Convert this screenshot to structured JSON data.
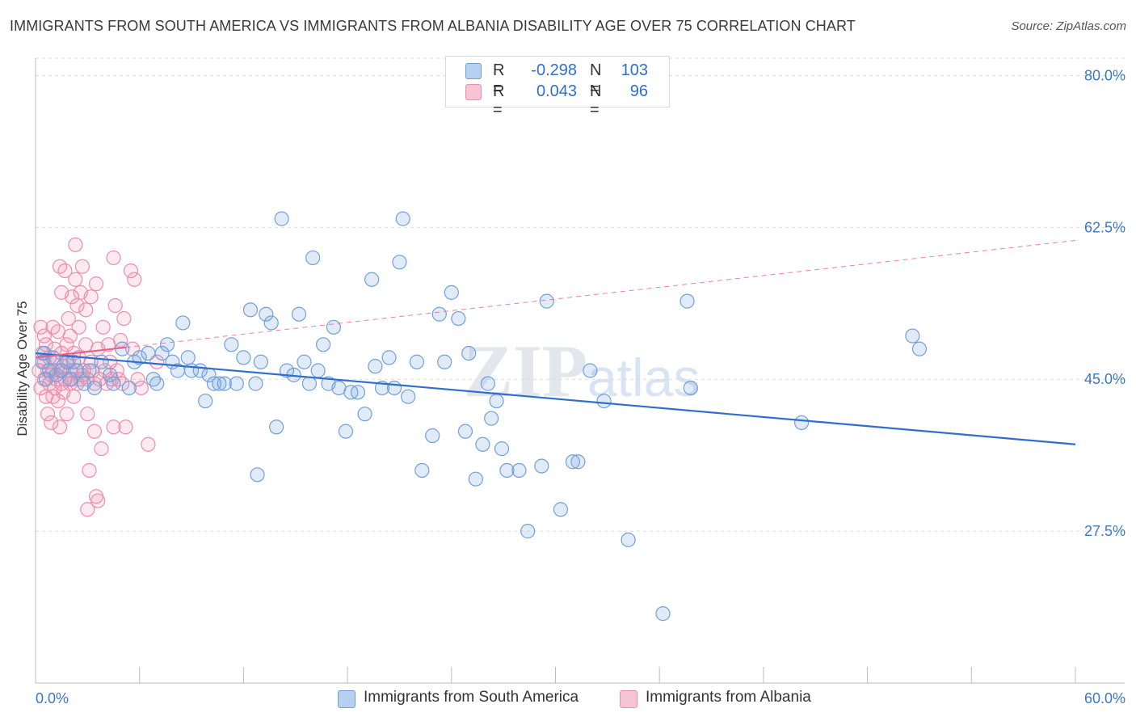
{
  "chart_data": {
    "type": "scatter",
    "title": "IMMIGRANTS FROM SOUTH AMERICA VS IMMIGRANTS FROM ALBANIA DISABILITY AGE OVER 75 CORRELATION CHART",
    "source": "Source: ZipAtlas.com",
    "watermark": "ZIPatlas",
    "xlabel": "",
    "ylabel": "Disability Age Over 75",
    "xlim": [
      0,
      60
    ],
    "ylim": [
      10,
      82
    ],
    "x_tick_labels": [
      "0.0%",
      "60.0%"
    ],
    "y_ticks": [
      27.5,
      45.0,
      62.5,
      80.0
    ],
    "y_tick_labels": [
      "27.5%",
      "45.0%",
      "62.5%",
      "80.0%"
    ],
    "grid": true,
    "legend": {
      "position": "top-center",
      "rows": [
        {
          "r_label": "R =",
          "r_value": "-0.298",
          "n_label": "N =",
          "n_value": "103"
        },
        {
          "r_label": "R =",
          "r_value": "0.043",
          "n_label": "N =",
          "n_value": "96"
        }
      ]
    },
    "series": [
      {
        "name": "Immigrants from South America",
        "color": "#6fa0dc",
        "line_color": "#2f6fcc",
        "trend": {
          "x": [
            0,
            60
          ],
          "y": [
            48.0,
            37.5
          ],
          "style": "solid"
        },
        "points": [
          [
            0.4,
            47
          ],
          [
            0.5,
            48
          ],
          [
            0.6,
            45
          ],
          [
            0.8,
            46
          ],
          [
            1,
            47.5
          ],
          [
            1.2,
            45.5
          ],
          [
            1.5,
            46
          ],
          [
            1.8,
            47
          ],
          [
            2,
            45
          ],
          [
            2.2,
            47
          ],
          [
            2.4,
            46
          ],
          [
            2.8,
            44.5
          ],
          [
            3.1,
            46
          ],
          [
            3.4,
            44
          ],
          [
            3.8,
            47
          ],
          [
            4.3,
            45.5
          ],
          [
            4.5,
            44.5
          ],
          [
            5,
            48.5
          ],
          [
            5.4,
            44
          ],
          [
            5.7,
            47
          ],
          [
            6,
            47.5
          ],
          [
            6.5,
            48
          ],
          [
            6.8,
            45
          ],
          [
            7,
            44.5
          ],
          [
            7.3,
            48
          ],
          [
            7.6,
            49
          ],
          [
            7.9,
            47
          ],
          [
            8.2,
            46
          ],
          [
            8.5,
            51.5
          ],
          [
            8.8,
            47.5
          ],
          [
            9,
            46
          ],
          [
            9.5,
            46
          ],
          [
            9.8,
            42.5
          ],
          [
            10,
            45.5
          ],
          [
            10.3,
            44.5
          ],
          [
            10.6,
            44.5
          ],
          [
            10.9,
            44.5
          ],
          [
            11.3,
            49
          ],
          [
            11.6,
            44.5
          ],
          [
            12,
            47.5
          ],
          [
            12.4,
            53
          ],
          [
            12.7,
            44.5
          ],
          [
            12.8,
            34
          ],
          [
            13,
            47
          ],
          [
            13.3,
            52.5
          ],
          [
            13.6,
            51.5
          ],
          [
            13.9,
            39.5
          ],
          [
            14.2,
            63.5
          ],
          [
            14.5,
            46
          ],
          [
            14.9,
            45.5
          ],
          [
            15.2,
            52.5
          ],
          [
            15.5,
            47
          ],
          [
            15.8,
            44.5
          ],
          [
            16,
            59
          ],
          [
            16.3,
            46
          ],
          [
            16.6,
            49
          ],
          [
            16.9,
            44.5
          ],
          [
            17.2,
            51
          ],
          [
            17.5,
            44
          ],
          [
            17.9,
            39
          ],
          [
            18.2,
            43.5
          ],
          [
            18.6,
            43.5
          ],
          [
            19,
            41
          ],
          [
            19.4,
            56.5
          ],
          [
            19.6,
            46.5
          ],
          [
            20,
            44
          ],
          [
            20.4,
            47.5
          ],
          [
            20.7,
            44
          ],
          [
            21,
            58.5
          ],
          [
            21.2,
            63.5
          ],
          [
            21.5,
            43
          ],
          [
            22,
            47
          ],
          [
            22.3,
            34.5
          ],
          [
            22.9,
            38.5
          ],
          [
            23.3,
            52.5
          ],
          [
            23.6,
            47
          ],
          [
            24,
            55
          ],
          [
            24.4,
            52
          ],
          [
            24.8,
            39
          ],
          [
            25,
            48
          ],
          [
            25.4,
            33.5
          ],
          [
            25.8,
            37.5
          ],
          [
            26.1,
            44.5
          ],
          [
            26.3,
            40.5
          ],
          [
            26.6,
            42.5
          ],
          [
            26.9,
            37
          ],
          [
            27.2,
            34.5
          ],
          [
            27.9,
            34.5
          ],
          [
            28.4,
            27.5
          ],
          [
            29.2,
            35
          ],
          [
            29.5,
            54
          ],
          [
            30.3,
            30
          ],
          [
            31,
            35.5
          ],
          [
            31.3,
            35.5
          ],
          [
            32,
            46
          ],
          [
            32.8,
            42.5
          ],
          [
            34.2,
            26.5
          ],
          [
            36.2,
            18
          ],
          [
            37.6,
            54
          ],
          [
            37.8,
            44
          ],
          [
            44.2,
            40
          ],
          [
            50.6,
            50
          ],
          [
            51,
            48.5
          ]
        ]
      },
      {
        "name": "Immigrants from Albania",
        "color": "#f08caa",
        "line_color": "#e8608a",
        "trend": {
          "x": [
            0,
            60
          ],
          "y": [
            47.5,
            61.0
          ],
          "style": "dashed"
        },
        "points": [
          [
            0.2,
            46
          ],
          [
            0.3,
            44
          ],
          [
            0.4,
            48
          ],
          [
            0.5,
            47
          ],
          [
            0.5,
            45
          ],
          [
            0.6,
            43
          ],
          [
            0.6,
            49
          ],
          [
            0.7,
            46
          ],
          [
            0.7,
            41
          ],
          [
            0.8,
            44.5
          ],
          [
            0.8,
            47.5
          ],
          [
            0.9,
            45.5
          ],
          [
            0.9,
            40
          ],
          [
            1,
            51
          ],
          [
            1,
            46
          ],
          [
            1,
            43
          ],
          [
            1.1,
            48.5
          ],
          [
            1.1,
            44
          ],
          [
            1.2,
            47
          ],
          [
            1.2,
            45
          ],
          [
            1.3,
            42.5
          ],
          [
            1.3,
            50.5
          ],
          [
            1.4,
            46
          ],
          [
            1.4,
            39.5
          ],
          [
            1.5,
            44.5
          ],
          [
            1.5,
            48
          ],
          [
            1.5,
            55
          ],
          [
            1.6,
            43.5
          ],
          [
            1.6,
            46.5
          ],
          [
            1.7,
            57.5
          ],
          [
            1.7,
            45
          ],
          [
            1.8,
            41
          ],
          [
            1.8,
            49
          ],
          [
            1.9,
            47
          ],
          [
            1.9,
            52
          ],
          [
            2,
            46
          ],
          [
            2,
            44.5
          ],
          [
            2,
            50
          ],
          [
            2.1,
            45
          ],
          [
            2.1,
            54.5
          ],
          [
            2.2,
            48
          ],
          [
            2.2,
            43
          ],
          [
            2.3,
            56.5
          ],
          [
            2.3,
            60.5
          ],
          [
            2.3,
            46
          ],
          [
            2.4,
            44.5
          ],
          [
            2.4,
            53.5
          ],
          [
            2.5,
            47.5
          ],
          [
            2.5,
            51
          ],
          [
            2.6,
            55
          ],
          [
            2.7,
            45.5
          ],
          [
            2.7,
            58
          ],
          [
            2.8,
            46
          ],
          [
            2.9,
            49
          ],
          [
            2.9,
            53
          ],
          [
            3,
            45
          ],
          [
            3,
            41
          ],
          [
            3,
            30
          ],
          [
            3.1,
            34.5
          ],
          [
            3.2,
            47
          ],
          [
            3.2,
            54.5
          ],
          [
            3.3,
            46
          ],
          [
            3.4,
            44.5
          ],
          [
            3.4,
            39
          ],
          [
            3.5,
            31.5
          ],
          [
            3.5,
            56
          ],
          [
            3.6,
            48.5
          ],
          [
            3.7,
            45
          ],
          [
            3.8,
            37
          ],
          [
            3.9,
            51
          ],
          [
            4,
            46
          ],
          [
            4.1,
            44.5
          ],
          [
            4.2,
            49
          ],
          [
            4.3,
            47
          ],
          [
            4.4,
            45
          ],
          [
            4.5,
            39.5
          ],
          [
            4.5,
            59
          ],
          [
            4.6,
            53.5
          ],
          [
            4.7,
            46
          ],
          [
            4.8,
            45
          ],
          [
            4.9,
            49.5
          ],
          [
            5,
            44.5
          ],
          [
            5.1,
            52
          ],
          [
            5.2,
            39.5
          ],
          [
            5.5,
            57.5
          ],
          [
            5.6,
            48.5
          ],
          [
            5.7,
            56.5
          ],
          [
            5.9,
            45
          ],
          [
            6.1,
            44
          ],
          [
            6.5,
            37.5
          ],
          [
            7,
            47
          ],
          [
            0.3,
            51
          ],
          [
            1.4,
            58
          ],
          [
            2.6,
            45
          ],
          [
            0.5,
            50
          ],
          [
            3.6,
            31
          ]
        ]
      }
    ]
  }
}
